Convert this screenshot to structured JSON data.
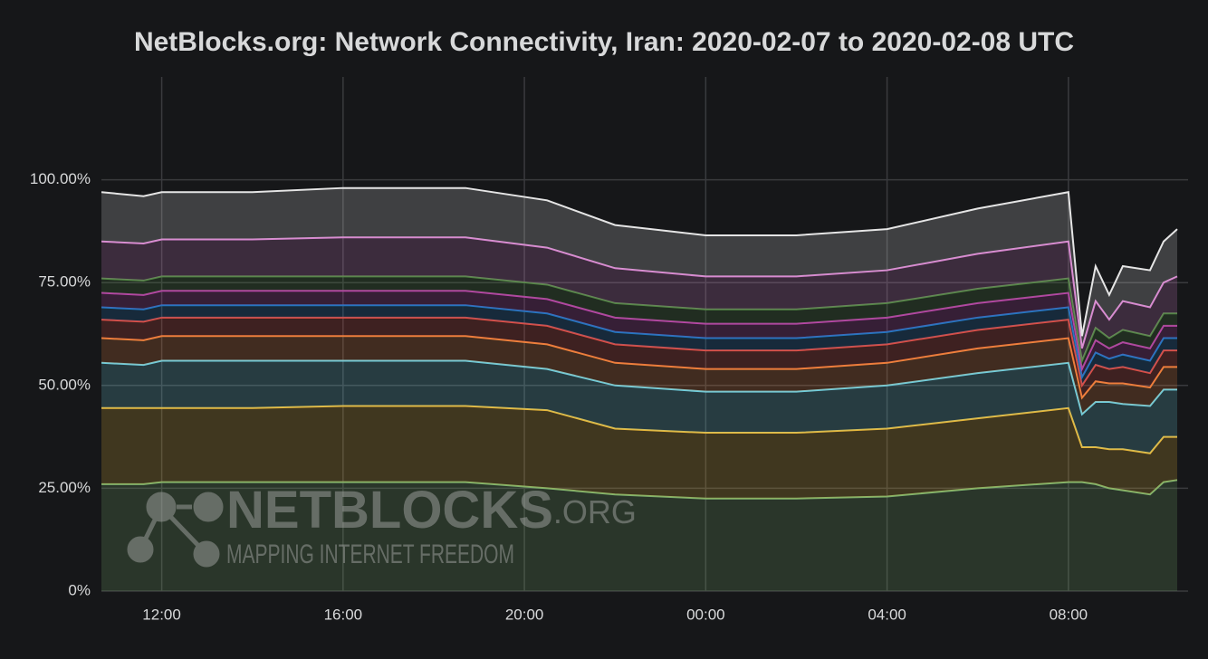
{
  "chart_data": {
    "type": "stacked-area",
    "title": "NetBlocks.org: Network Connectivity, Iran: 2020-02-07 to 2020-02-08 UTC",
    "x": [
      10.67,
      11.6,
      12,
      14,
      16,
      18.7,
      20.5,
      22,
      24,
      26,
      28,
      30,
      32,
      32.3,
      32.6,
      32.9,
      33.2,
      33.8,
      34.1,
      34.4
    ],
    "xlim": [
      10.67,
      34.4
    ],
    "xticks": [
      {
        "value": 12,
        "label": "12:00"
      },
      {
        "value": 16,
        "label": "16:00"
      },
      {
        "value": 20,
        "label": "20:00"
      },
      {
        "value": 24,
        "label": "00:00"
      },
      {
        "value": 28,
        "label": "04:00"
      },
      {
        "value": 32,
        "label": "08:00"
      }
    ],
    "ylim": [
      0,
      125
    ],
    "yticks": [
      {
        "value": 0,
        "label": "0%"
      },
      {
        "value": 25,
        "label": "25.00%"
      },
      {
        "value": 50,
        "label": "50.00%"
      },
      {
        "value": 75,
        "label": "75.00%"
      },
      {
        "value": 100,
        "label": "100.00%"
      }
    ],
    "grid": true,
    "series": [
      {
        "color": "#7eb26d",
        "values": [
          26,
          26,
          26.5,
          26.5,
          26.5,
          26.5,
          25,
          23.5,
          22.5,
          22.5,
          23,
          25,
          26.5,
          26.5,
          26,
          25,
          24.5,
          23.5,
          26.5,
          27
        ]
      },
      {
        "color": "#eab839",
        "values": [
          18.5,
          18.5,
          18,
          18,
          18.5,
          18.5,
          19,
          16,
          16,
          16,
          16.5,
          17,
          18,
          8.5,
          9,
          9.5,
          10,
          10,
          11,
          10.5
        ]
      },
      {
        "color": "#6ed0e0",
        "values": [
          11,
          10.5,
          11.5,
          11.5,
          11,
          11,
          10,
          10.5,
          10,
          10,
          10.5,
          11,
          11,
          8,
          11,
          11.5,
          11,
          11.5,
          11.5,
          11.5
        ]
      },
      {
        "color": "#ef843c",
        "values": [
          6,
          6,
          6,
          6,
          6,
          6,
          6,
          5.5,
          5.5,
          5.5,
          5.5,
          6,
          6,
          4,
          5,
          4.5,
          5,
          4.5,
          5.5,
          5.5
        ]
      },
      {
        "color": "#e24d42",
        "values": [
          4.5,
          4.5,
          4.5,
          4.5,
          4.5,
          4.5,
          4.5,
          4.5,
          4.5,
          4.5,
          4.5,
          4.5,
          4.5,
          3,
          4,
          3.5,
          4,
          3.5,
          4,
          4
        ]
      },
      {
        "color": "#1f78c1",
        "values": [
          3,
          3,
          3,
          3,
          3,
          3,
          3,
          3,
          3,
          3,
          3,
          3,
          3,
          2,
          3,
          2.5,
          3,
          3,
          3,
          3
        ]
      },
      {
        "color": "#ba43a9",
        "values": [
          3.5,
          3.5,
          3.5,
          3.5,
          3.5,
          3.5,
          3.5,
          3.5,
          3.5,
          3.5,
          3.5,
          3.5,
          3.5,
          2,
          3,
          2.5,
          3,
          3,
          3,
          3
        ]
      },
      {
        "color": "#508642",
        "values": [
          3.5,
          3.5,
          3.5,
          3.5,
          3.5,
          3.5,
          3.5,
          3.5,
          3.5,
          3.5,
          3.5,
          3.5,
          3.5,
          2,
          3,
          2.5,
          3,
          3,
          3,
          3
        ]
      },
      {
        "color": "#d683ce",
        "values": [
          9,
          9,
          9,
          9,
          9.5,
          9.5,
          9,
          8.5,
          8,
          8,
          8,
          8.5,
          9,
          3,
          6.5,
          4.5,
          7,
          7,
          7.5,
          9
        ]
      },
      {
        "color": "#e5e5e5",
        "values": [
          12,
          11.5,
          11.5,
          11.5,
          12,
          12,
          11.5,
          10.5,
          10,
          10,
          10,
          11,
          12,
          3,
          8.5,
          6,
          8.5,
          9,
          10,
          11.5
        ]
      }
    ]
  },
  "watermark": {
    "name": "NETBLOCKS",
    "suffix": ".ORG",
    "tagline": "MAPPING INTERNET FREEDOM"
  }
}
